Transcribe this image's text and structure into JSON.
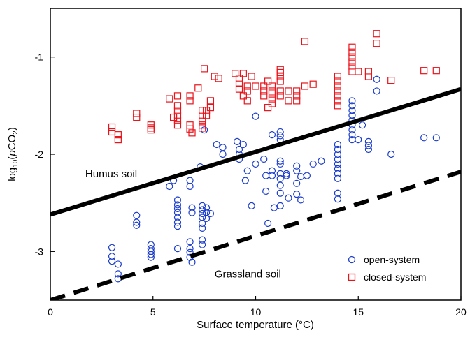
{
  "chart_data": {
    "type": "scatter",
    "title": "",
    "xlabel": "Surface temperature (°C)",
    "ylabel": {
      "prefix": "log",
      "sub": "10",
      "mid": "(",
      "italic": "p",
      "gas": "CO",
      "gas_sub": "2",
      "suffix": ")"
    },
    "xlim": [
      0,
      20
    ],
    "ylim": [
      -3.5,
      -0.5
    ],
    "x_ticks": [
      0,
      5,
      10,
      15,
      20
    ],
    "x_tick_labels": [
      "0",
      "5",
      "10",
      "15",
      "20"
    ],
    "y_ticks": [
      -1,
      -2,
      -3
    ],
    "y_tick_labels": [
      "-1",
      "-2",
      "-3"
    ],
    "grid": false,
    "legend_position": "bottom-right",
    "annotations": [
      {
        "text": "Humus soil",
        "x": 1.7,
        "y": -2.2
      },
      {
        "text": "Grassland soil",
        "x": 8.0,
        "y": -3.23
      }
    ],
    "lines": [
      {
        "style": "solid",
        "color": "#000000",
        "x": [
          0,
          20
        ],
        "y": [
          -2.62,
          -1.33
        ]
      },
      {
        "style": "dashed",
        "color": "#000000",
        "x": [
          0,
          20
        ],
        "y": [
          -3.5,
          -2.18
        ]
      }
    ],
    "series": [
      {
        "name": "open-system",
        "marker": "circle",
        "color": "#1a3ccc",
        "points": [
          [
            3.0,
            -2.96
          ],
          [
            3.0,
            -3.05
          ],
          [
            3.0,
            -3.1
          ],
          [
            3.3,
            -3.13
          ],
          [
            3.3,
            -3.23
          ],
          [
            3.3,
            -3.28
          ],
          [
            4.2,
            -2.63
          ],
          [
            4.2,
            -2.7
          ],
          [
            4.2,
            -2.73
          ],
          [
            4.9,
            -2.93
          ],
          [
            4.9,
            -2.97
          ],
          [
            4.9,
            -3.0
          ],
          [
            4.9,
            -3.03
          ],
          [
            4.9,
            -3.06
          ],
          [
            5.8,
            -2.33
          ],
          [
            6.0,
            -2.27
          ],
          [
            6.2,
            -2.47
          ],
          [
            6.2,
            -2.52
          ],
          [
            6.2,
            -2.56
          ],
          [
            6.2,
            -2.6
          ],
          [
            6.2,
            -2.65
          ],
          [
            6.2,
            -2.7
          ],
          [
            6.2,
            -2.74
          ],
          [
            6.2,
            -2.97
          ],
          [
            6.8,
            -2.27
          ],
          [
            6.8,
            -2.33
          ],
          [
            6.8,
            -2.9
          ],
          [
            6.8,
            -2.97
          ],
          [
            6.8,
            -3.01
          ],
          [
            6.8,
            -3.06
          ],
          [
            6.9,
            -3.11
          ],
          [
            6.9,
            -2.6
          ],
          [
            6.9,
            -2.55
          ],
          [
            7.3,
            -2.13
          ],
          [
            7.4,
            -2.53
          ],
          [
            7.4,
            -2.57
          ],
          [
            7.4,
            -2.61
          ],
          [
            7.4,
            -2.65
          ],
          [
            7.4,
            -2.71
          ],
          [
            7.4,
            -2.76
          ],
          [
            7.4,
            -2.88
          ],
          [
            7.4,
            -2.93
          ],
          [
            7.6,
            -2.55
          ],
          [
            7.6,
            -2.6
          ],
          [
            7.6,
            -2.66
          ],
          [
            7.8,
            -2.61
          ],
          [
            7.5,
            -1.75
          ],
          [
            8.1,
            -1.9
          ],
          [
            8.4,
            -1.93
          ],
          [
            8.4,
            -2.0
          ],
          [
            9.1,
            -1.87
          ],
          [
            9.2,
            -1.95
          ],
          [
            9.2,
            -2.0
          ],
          [
            9.2,
            -2.05
          ],
          [
            9.4,
            -1.9
          ],
          [
            9.5,
            -2.27
          ],
          [
            9.6,
            -2.17
          ],
          [
            9.8,
            -2.53
          ],
          [
            10.0,
            -1.61
          ],
          [
            10.0,
            -2.1
          ],
          [
            10.4,
            -2.05
          ],
          [
            10.5,
            -2.22
          ],
          [
            10.5,
            -2.38
          ],
          [
            10.6,
            -2.71
          ],
          [
            10.8,
            -1.8
          ],
          [
            10.8,
            -2.17
          ],
          [
            10.8,
            -2.22
          ],
          [
            10.9,
            -2.55
          ],
          [
            11.2,
            -1.77
          ],
          [
            11.2,
            -1.81
          ],
          [
            11.2,
            -1.85
          ],
          [
            11.2,
            -2.07
          ],
          [
            11.2,
            -2.1
          ],
          [
            11.2,
            -2.2
          ],
          [
            11.2,
            -2.25
          ],
          [
            11.2,
            -2.32
          ],
          [
            11.2,
            -2.4
          ],
          [
            11.2,
            -2.53
          ],
          [
            11.5,
            -2.2
          ],
          [
            11.5,
            -2.22
          ],
          [
            11.6,
            -2.45
          ],
          [
            12.0,
            -2.12
          ],
          [
            12.0,
            -2.17
          ],
          [
            12.0,
            -2.3
          ],
          [
            12.0,
            -2.41
          ],
          [
            12.2,
            -2.23
          ],
          [
            12.2,
            -2.47
          ],
          [
            12.5,
            -2.22
          ],
          [
            12.8,
            -2.1
          ],
          [
            13.2,
            -2.07
          ],
          [
            14.0,
            -1.9
          ],
          [
            14.0,
            -1.95
          ],
          [
            14.0,
            -2.0
          ],
          [
            14.0,
            -2.05
          ],
          [
            14.0,
            -2.1
          ],
          [
            14.0,
            -2.15
          ],
          [
            14.0,
            -2.2
          ],
          [
            14.0,
            -2.25
          ],
          [
            14.0,
            -2.4
          ],
          [
            14.0,
            -2.46
          ],
          [
            14.7,
            -1.45
          ],
          [
            14.7,
            -1.5
          ],
          [
            14.7,
            -1.55
          ],
          [
            14.7,
            -1.6
          ],
          [
            14.7,
            -1.65
          ],
          [
            14.7,
            -1.7
          ],
          [
            14.7,
            -1.75
          ],
          [
            14.7,
            -1.8
          ],
          [
            14.7,
            -1.85
          ],
          [
            15.0,
            -1.85
          ],
          [
            15.2,
            -1.7
          ],
          [
            15.5,
            -1.87
          ],
          [
            15.5,
            -1.91
          ],
          [
            15.5,
            -1.95
          ],
          [
            15.9,
            -1.23
          ],
          [
            15.9,
            -1.35
          ],
          [
            16.6,
            -2.0
          ],
          [
            18.2,
            -1.83
          ],
          [
            18.8,
            -1.83
          ]
        ]
      },
      {
        "name": "closed-system",
        "marker": "square",
        "color": "#e8141c",
        "points": [
          [
            3.0,
            -1.72
          ],
          [
            3.0,
            -1.77
          ],
          [
            3.3,
            -1.8
          ],
          [
            3.3,
            -1.85
          ],
          [
            4.2,
            -1.58
          ],
          [
            4.2,
            -1.62
          ],
          [
            4.9,
            -1.7
          ],
          [
            4.9,
            -1.73
          ],
          [
            4.9,
            -1.75
          ],
          [
            5.8,
            -1.43
          ],
          [
            6.0,
            -1.62
          ],
          [
            6.2,
            -1.4
          ],
          [
            6.2,
            -1.5
          ],
          [
            6.2,
            -1.55
          ],
          [
            6.2,
            -1.6
          ],
          [
            6.2,
            -1.65
          ],
          [
            6.2,
            -1.7
          ],
          [
            6.8,
            -1.4
          ],
          [
            6.8,
            -1.45
          ],
          [
            6.8,
            -1.7
          ],
          [
            6.8,
            -1.74
          ],
          [
            6.9,
            -1.78
          ],
          [
            7.2,
            -1.32
          ],
          [
            7.4,
            -1.55
          ],
          [
            7.4,
            -1.6
          ],
          [
            7.4,
            -1.65
          ],
          [
            7.4,
            -1.7
          ],
          [
            7.4,
            -1.73
          ],
          [
            7.6,
            -1.55
          ],
          [
            7.6,
            -1.6
          ],
          [
            7.8,
            -1.45
          ],
          [
            7.8,
            -1.52
          ],
          [
            7.5,
            -1.12
          ],
          [
            8.0,
            -1.2
          ],
          [
            8.2,
            -1.22
          ],
          [
            9.0,
            -1.17
          ],
          [
            9.2,
            -1.22
          ],
          [
            9.2,
            -1.27
          ],
          [
            9.2,
            -1.33
          ],
          [
            9.4,
            -1.17
          ],
          [
            9.4,
            -1.4
          ],
          [
            9.6,
            -1.3
          ],
          [
            9.6,
            -1.35
          ],
          [
            9.6,
            -1.45
          ],
          [
            9.8,
            -1.2
          ],
          [
            10.0,
            -1.3
          ],
          [
            10.4,
            -1.3
          ],
          [
            10.4,
            -1.35
          ],
          [
            10.4,
            -1.4
          ],
          [
            10.6,
            -1.25
          ],
          [
            10.6,
            -1.52
          ],
          [
            10.8,
            -1.3
          ],
          [
            10.8,
            -1.35
          ],
          [
            10.8,
            -1.38
          ],
          [
            10.8,
            -1.43
          ],
          [
            10.8,
            -1.48
          ],
          [
            11.2,
            -1.13
          ],
          [
            11.2,
            -1.16
          ],
          [
            11.2,
            -1.2
          ],
          [
            11.2,
            -1.25
          ],
          [
            11.2,
            -1.35
          ],
          [
            11.2,
            -1.4
          ],
          [
            11.6,
            -1.35
          ],
          [
            11.6,
            -1.45
          ],
          [
            12.0,
            -1.35
          ],
          [
            12.0,
            -1.4
          ],
          [
            12.0,
            -1.45
          ],
          [
            12.4,
            -1.3
          ],
          [
            12.4,
            -0.84
          ],
          [
            12.8,
            -1.28
          ],
          [
            14.0,
            -1.2
          ],
          [
            14.0,
            -1.25
          ],
          [
            14.0,
            -1.3
          ],
          [
            14.0,
            -1.35
          ],
          [
            14.0,
            -1.4
          ],
          [
            14.0,
            -1.45
          ],
          [
            14.0,
            -1.5
          ],
          [
            14.7,
            -0.9
          ],
          [
            14.7,
            -0.95
          ],
          [
            14.7,
            -1.0
          ],
          [
            14.7,
            -1.05
          ],
          [
            14.7,
            -1.1
          ],
          [
            14.7,
            -1.15
          ],
          [
            15.0,
            -1.15
          ],
          [
            15.5,
            -1.15
          ],
          [
            15.5,
            -1.2
          ],
          [
            15.9,
            -0.76
          ],
          [
            15.9,
            -0.86
          ],
          [
            16.6,
            -1.24
          ],
          [
            18.2,
            -1.14
          ],
          [
            18.8,
            -1.14
          ]
        ]
      }
    ]
  }
}
